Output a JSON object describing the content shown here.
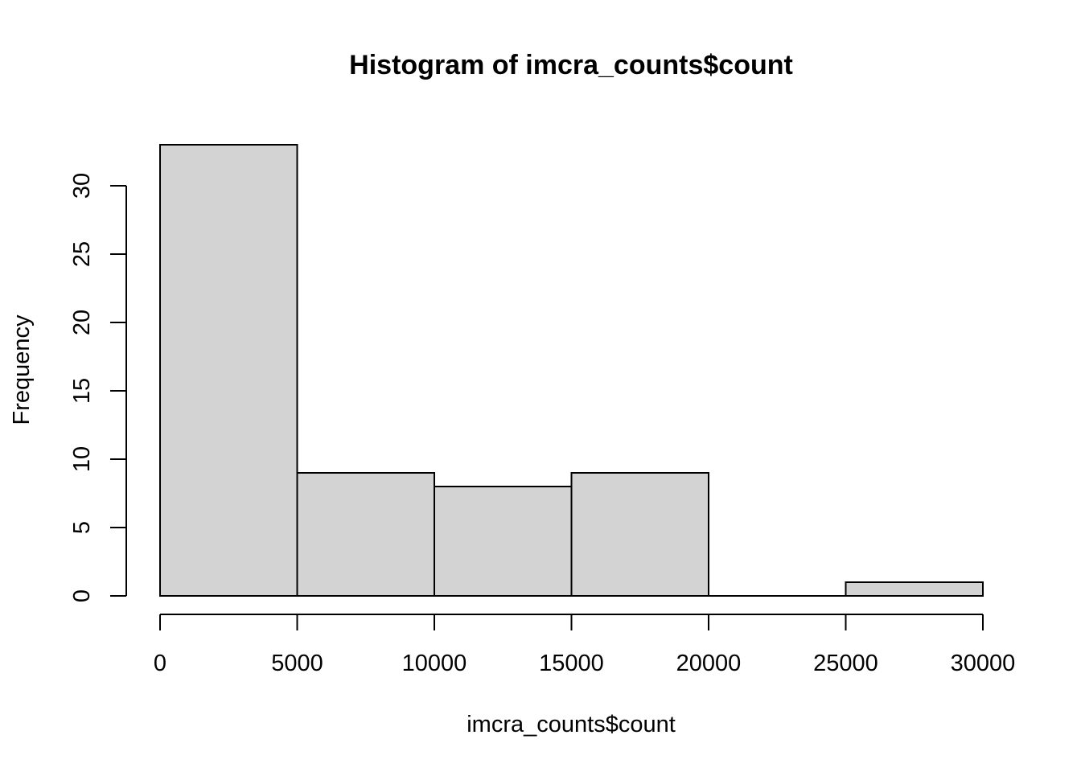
{
  "chart_data": {
    "type": "bar",
    "title": "Histogram of imcra_counts$count",
    "xlabel": "imcra_counts$count",
    "ylabel": "Frequency",
    "bins": [
      {
        "from": 0,
        "to": 5000,
        "value": 33
      },
      {
        "from": 5000,
        "to": 10000,
        "value": 9
      },
      {
        "from": 10000,
        "to": 15000,
        "value": 8
      },
      {
        "from": 15000,
        "to": 20000,
        "value": 9
      },
      {
        "from": 20000,
        "to": 25000,
        "value": 0
      },
      {
        "from": 25000,
        "to": 30000,
        "value": 1
      }
    ],
    "xlim": [
      0,
      30000
    ],
    "ylim": [
      0,
      33
    ],
    "x_ticks": [
      0,
      5000,
      10000,
      15000,
      20000,
      25000,
      30000
    ],
    "y_ticks": [
      0,
      5,
      10,
      15,
      20,
      25,
      30
    ],
    "bar_color": "#d3d3d3",
    "grid": false,
    "legend": "none"
  }
}
